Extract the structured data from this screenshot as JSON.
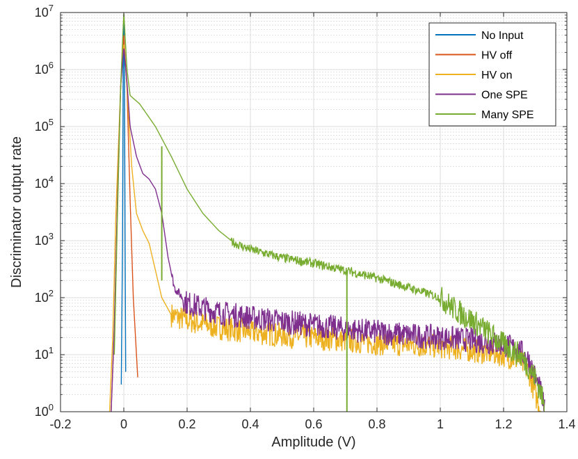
{
  "chart_data": {
    "type": "line",
    "title": "",
    "xlabel": "Amplitude (V)",
    "ylabel": "Discriminator output rate",
    "xlim": [
      -0.2,
      1.4
    ],
    "ylim": [
      1,
      10000000
    ],
    "yscale": "log",
    "grid": true,
    "minor_grid": true,
    "legend_position": "top-right",
    "x_ticks": [
      -0.2,
      0,
      0.2,
      0.4,
      0.6,
      0.8,
      1,
      1.2,
      1.4
    ],
    "x_tick_labels": [
      "-0.2",
      "0",
      "0.2",
      "0.4",
      "0.6",
      "0.8",
      "1",
      "1.2",
      "1.4"
    ],
    "y_ticks": [
      1,
      10,
      100,
      1000,
      10000,
      100000,
      1000000,
      10000000
    ],
    "y_tick_labels": [
      {
        "base": "10",
        "exp": "0"
      },
      {
        "base": "10",
        "exp": "1"
      },
      {
        "base": "10",
        "exp": "2"
      },
      {
        "base": "10",
        "exp": "3"
      },
      {
        "base": "10",
        "exp": "4"
      },
      {
        "base": "10",
        "exp": "5"
      },
      {
        "base": "10",
        "exp": "6"
      },
      {
        "base": "10",
        "exp": "7"
      }
    ],
    "series": [
      {
        "name": "No Input",
        "color": "#0072BD",
        "x": [
          -0.008,
          -0.004,
          -0.002,
          0.0,
          0.002,
          0.004,
          0.006
        ],
        "y": [
          3,
          1000,
          1000000,
          8000000,
          1000000,
          1000,
          5
        ]
      },
      {
        "name": "HV off",
        "color": "#D95319",
        "x": [
          -0.04,
          -0.03,
          -0.02,
          -0.01,
          0.0,
          0.01,
          0.02,
          0.03,
          0.04,
          0.044
        ],
        "y": [
          1,
          30,
          5000,
          500000,
          4000000,
          500000,
          5000,
          100,
          10,
          4
        ]
      },
      {
        "name": "HV on",
        "color": "#EDB120",
        "x": [
          -0.045,
          -0.035,
          -0.025,
          -0.01,
          0.0,
          0.01,
          0.025,
          0.04,
          0.06,
          0.08,
          0.1,
          0.12,
          0.15,
          0.2,
          0.3,
          0.4,
          0.5,
          0.6,
          0.7,
          0.8,
          0.9,
          1.0,
          1.1,
          1.2,
          1.25,
          1.28,
          1.3,
          1.32
        ],
        "y": [
          1,
          20,
          3000,
          500000,
          3000000,
          500000,
          20000,
          3000,
          1500,
          900,
          300,
          100,
          50,
          40,
          30,
          25,
          22,
          20,
          18,
          16,
          15,
          14,
          12,
          10,
          8,
          5,
          2,
          1
        ]
      },
      {
        "name": "One SPE",
        "color": "#7E2F8E",
        "x": [
          -0.04,
          -0.03,
          -0.02,
          -0.01,
          0.0,
          0.01,
          0.02,
          0.04,
          0.06,
          0.08,
          0.1,
          0.12,
          0.14,
          0.16,
          0.2,
          0.3,
          0.4,
          0.5,
          0.6,
          0.7,
          0.8,
          0.9,
          1.0,
          1.1,
          1.2,
          1.25,
          1.28,
          1.3,
          1.32,
          1.33
        ],
        "y": [
          1,
          30,
          5000,
          500000,
          2500000,
          600000,
          100000,
          30000,
          15000,
          12000,
          8000,
          3000,
          500,
          150,
          80,
          55,
          45,
          38,
          33,
          28,
          25,
          22,
          20,
          18,
          15,
          12,
          8,
          4,
          2,
          1
        ]
      },
      {
        "name": "Many SPE",
        "color": "#77AC30",
        "x": [
          -0.03,
          -0.02,
          -0.01,
          0.0,
          0.01,
          0.02,
          0.05,
          0.1,
          0.15,
          0.2,
          0.25,
          0.3,
          0.35,
          0.4,
          0.5,
          0.6,
          0.7,
          0.8,
          0.9,
          1.0,
          1.05,
          1.1,
          1.15,
          1.2,
          1.25,
          1.28,
          1.3,
          1.32,
          1.33
        ],
        "y": [
          10,
          3000,
          500000,
          10000000,
          1000000,
          350000,
          250000,
          100000,
          30000,
          8000,
          3000,
          1500,
          900,
          700,
          500,
          400,
          300,
          220,
          150,
          100,
          60,
          40,
          25,
          15,
          10,
          6,
          4,
          2,
          1
        ]
      }
    ],
    "vertical_marks": [
      {
        "series": "Many SPE",
        "color": "#77AC30",
        "x": 0.12,
        "y_from": 200,
        "y_to": 45000
      },
      {
        "series": "Many SPE",
        "color": "#77AC30",
        "x": 0.705,
        "y_from": 1,
        "y_to": 250
      }
    ]
  }
}
